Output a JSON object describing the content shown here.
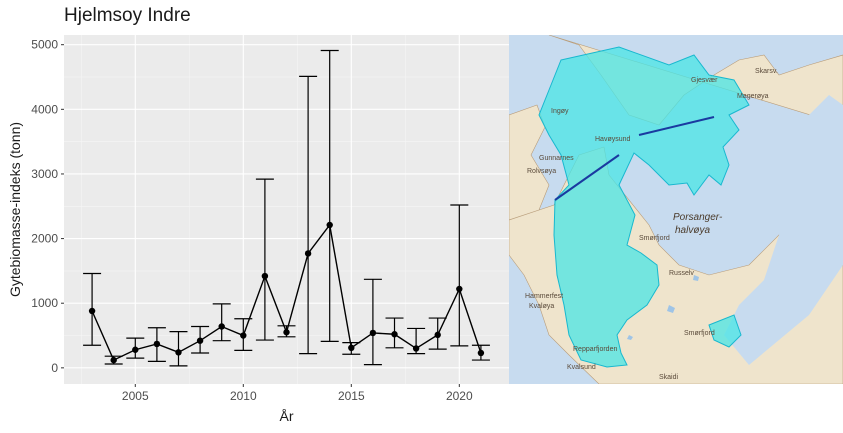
{
  "chart_data": {
    "type": "line",
    "title": "Hjelmsoy Indre",
    "xlabel": "År",
    "ylabel": "Gytebiomasse-indeks (tonn)",
    "xlim": [
      2001.7,
      2022.3
    ],
    "ylim": [
      -250,
      5150
    ],
    "x_ticks": [
      2005,
      2010,
      2015,
      2020
    ],
    "y_ticks": [
      0,
      1000,
      2000,
      3000,
      4000,
      5000
    ],
    "grid": true,
    "series": [
      {
        "x": [
          2003,
          2004,
          2005,
          2006,
          2007,
          2008,
          2009,
          2010,
          2011,
          2012,
          2013,
          2014,
          2015,
          2016,
          2017,
          2018,
          2019,
          2020,
          2021
        ],
        "y": [
          880,
          120,
          280,
          370,
          240,
          420,
          640,
          500,
          1420,
          550,
          1770,
          2210,
          310,
          540,
          520,
          300,
          510,
          1220,
          230
        ],
        "lower": [
          350,
          60,
          150,
          100,
          30,
          230,
          420,
          270,
          430,
          480,
          220,
          410,
          210,
          50,
          310,
          220,
          290,
          340,
          120
        ],
        "upper": [
          1460,
          180,
          460,
          620,
          560,
          640,
          990,
          760,
          2920,
          650,
          4510,
          4910,
          390,
          1370,
          770,
          610,
          770,
          2520,
          350
        ]
      }
    ]
  },
  "map": {
    "labels": [
      "Gjesvær",
      "Skarsv.",
      "Ingøy",
      "Havøysund",
      "Magerøya",
      "Gunnarnes",
      "Rolvsøya",
      "Porsanger-",
      "halvøya",
      "Smørfjord",
      "Repparfjorden",
      "Hammerfest",
      "Kvaløya",
      "Kvalsund",
      "Skaidi",
      "Smørfjord",
      "Russelv"
    ]
  }
}
